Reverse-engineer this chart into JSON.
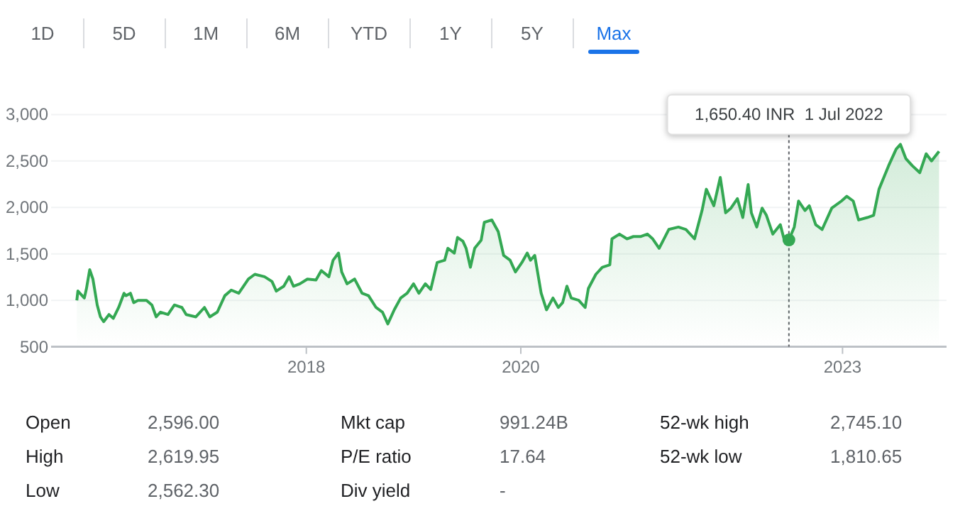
{
  "chart_data": [
    {
      "type": "other",
      "categories": [
        "1D",
        "5D",
        "1M",
        "6M",
        "YTD",
        "1Y",
        "5Y",
        "Max"
      ]
    },
    {
      "type": "area",
      "xlim": [
        2015.62,
        2023.97
      ],
      "xticks": [
        2018,
        2020,
        2023
      ],
      "ylim": [
        500,
        3000
      ],
      "yticks": [
        500,
        {
          "value": 1000,
          "label": "1,000"
        },
        {
          "value": 1500,
          "label": "1,500"
        },
        {
          "value": 2000,
          "label": "2,000"
        },
        {
          "value": 2500,
          "label": "2,500"
        },
        {
          "value": 3000,
          "label": "3,000"
        }
      ],
      "grid": "y",
      "x": [
        2015.86,
        2015.87,
        2015.93,
        2015.95,
        2015.98,
        2016.01,
        2016.05,
        2016.08,
        2016.11,
        2016.16,
        2016.2,
        2016.25,
        2016.3,
        2016.32,
        2016.36,
        2016.39,
        2016.43,
        2016.51,
        2016.56,
        2016.6,
        2016.64,
        2016.71,
        2016.77,
        2016.84,
        2016.88,
        2016.97,
        2017.05,
        2017.1,
        2017.17,
        2017.24,
        2017.3,
        2017.37,
        2017.46,
        2017.52,
        2017.61,
        2017.68,
        2017.72,
        2017.79,
        2017.84,
        2017.88,
        2017.94,
        2018.01,
        2018.09,
        2018.14,
        2018.21,
        2018.25,
        2018.3,
        2018.33,
        2018.38,
        2018.45,
        2018.52,
        2018.58,
        2018.65,
        2018.71,
        2018.76,
        2018.82,
        2018.88,
        2018.94,
        2019.0,
        2019.05,
        2019.11,
        2019.16,
        2019.22,
        2019.29,
        2019.32,
        2019.38,
        2019.41,
        2019.46,
        2019.49,
        2019.53,
        2019.57,
        2019.63,
        2019.66,
        2019.73,
        2019.79,
        2019.84,
        2019.9,
        2019.95,
        2020.01,
        2020.06,
        2020.09,
        2020.13,
        2020.19,
        2020.24,
        2020.3,
        2020.35,
        2020.39,
        2020.43,
        2020.47,
        2020.54,
        2020.6,
        2020.63,
        2020.7,
        2020.76,
        2020.83,
        2020.85,
        2020.92,
        2020.99,
        2021.05,
        2021.12,
        2021.18,
        2021.23,
        2021.29,
        2021.38,
        2021.47,
        2021.54,
        2021.62,
        2021.69,
        2021.73,
        2021.8,
        2021.86,
        2021.91,
        2021.96,
        2022.02,
        2022.07,
        2022.12,
        2022.15,
        2022.2,
        2022.25,
        2022.29,
        2022.35,
        2022.42,
        2022.46,
        2022.5,
        2022.55,
        2022.59,
        2022.65,
        2022.69,
        2022.75,
        2022.81,
        2022.9,
        2022.99,
        2023.04,
        2023.1,
        2023.15,
        2023.23,
        2023.29,
        2023.34,
        2023.43,
        2023.5,
        2023.54,
        2023.59,
        2023.65,
        2023.72,
        2023.78,
        2023.83,
        2023.9
      ],
      "series": [
        {
          "type": "area",
          "color": "#34a853",
          "values": [
            1000,
            1100,
            1025,
            1127,
            1330,
            1230,
            950,
            822,
            770,
            847,
            806,
            923,
            1076,
            1050,
            1076,
            975,
            1000,
            1000,
            950,
            822,
            873,
            847,
            950,
            923,
            847,
            822,
            923,
            822,
            873,
            1050,
            1110,
            1076,
            1229,
            1280,
            1254,
            1203,
            1100,
            1152,
            1254,
            1152,
            1178,
            1229,
            1219,
            1320,
            1254,
            1432,
            1509,
            1305,
            1178,
            1229,
            1076,
            1050,
            923,
            873,
            746,
            898,
            1025,
            1076,
            1178,
            1076,
            1178,
            1117,
            1407,
            1432,
            1560,
            1509,
            1677,
            1636,
            1560,
            1356,
            1560,
            1646,
            1840,
            1865,
            1738,
            1483,
            1432,
            1305,
            1407,
            1509,
            1432,
            1483,
            1076,
            898,
            1025,
            923,
            975,
            1152,
            1025,
            1000,
            923,
            1127,
            1280,
            1356,
            1382,
            1662,
            1713,
            1662,
            1687,
            1687,
            1713,
            1662,
            1560,
            1763,
            1789,
            1763,
            1662,
            1967,
            2196,
            2018,
            2323,
            1942,
            1993,
            2094,
            1891,
            2247,
            1942,
            1789,
            1993,
            1916,
            1713,
            1814,
            1636,
            1650.4,
            1789,
            2069,
            1967,
            2018,
            1814,
            1763,
            1993,
            2069,
            2120,
            2069,
            1865,
            1891,
            1916,
            2196,
            2450,
            2628,
            2679,
            2527,
            2450,
            2374,
            2577,
            2501,
            2603
          ]
        },
        {
          "type": "scatter",
          "color": "#34a853",
          "x": [
            2022.5
          ],
          "values": [
            1650.4
          ]
        }
      ],
      "ref_lines": [
        {
          "axis": "x",
          "value": 2022.5,
          "color": "#5f6368",
          "line_style": "dotted"
        }
      ],
      "annotations": [
        "1,650.40 INR  1 Jul 2022"
      ]
    },
    {
      "type": "other",
      "annotations": [
        "Open",
        "2,596.00",
        "High",
        "2,619.95",
        "Low",
        "2,562.30",
        "Mkt cap",
        "991.24B",
        "P/E ratio",
        "17.64",
        "Div yield",
        "-",
        "52-wk high",
        "2,745.10",
        "52-wk low",
        "1,810.65"
      ]
    }
  ]
}
